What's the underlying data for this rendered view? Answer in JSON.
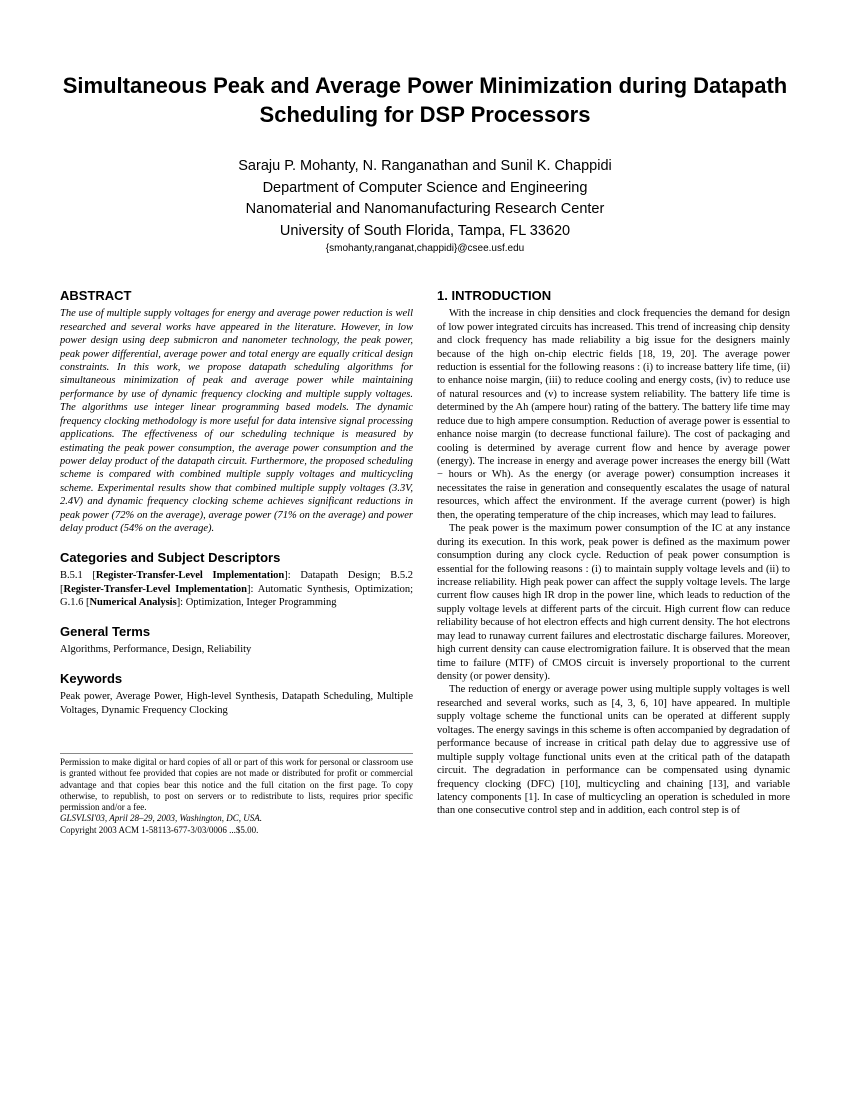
{
  "title": "Simultaneous Peak and Average Power Minimization during Datapath Scheduling for DSP Processors",
  "authors_line1": "Saraju P. Mohanty, N. Ranganathan and Sunil K. Chappidi",
  "authors_line2": "Department of Computer Science and Engineering",
  "authors_line3": "Nanomaterial and Nanomanufacturing Research Center",
  "authors_line4": "University of South Florida, Tampa, FL 33620",
  "email": "{smohanty,ranganat,chappidi}@csee.usf.edu",
  "abstract_head": "ABSTRACT",
  "abstract_body": "The use of multiple supply voltages for energy and average power reduction is well researched and several works have appeared in the literature. However, in low power design using deep submicron and nanometer technology, the peak power, peak power differential, average power and total energy are equally critical design constraints. In this work, we propose datapath scheduling algorithms for simultaneous minimization of peak and average power while maintaining performance by use of dynamic frequency clocking and multiple supply voltages. The algorithms use integer linear programming based models. The dynamic frequency clocking methodology is more useful for data intensive signal processing applications. The effectiveness of our scheduling technique is measured by estimating the peak power consumption, the average power consumption and the power delay product of the datapath circuit. Furthermore, the proposed scheduling scheme is compared with combined multiple supply voltages and multicycling scheme. Experimental results show that combined multiple supply voltages (3.3V, 2.4V) and dynamic frequency clocking scheme achieves significant reductions in peak power (72% on the average), average power (71% on the average) and power delay product (54% on the average).",
  "cat_head": "Categories and Subject Descriptors",
  "cat_body": "B.5.1 [Register-Transfer-Level Implementation]: Datapath Design; B.5.2 [Register-Transfer-Level Implementation]: Automatic Synthesis, Optimization; G.1.6 [Numerical Analysis]: Optimization, Integer Programming",
  "terms_head": "General Terms",
  "terms_body": "Algorithms, Performance, Design, Reliability",
  "keywords_head": "Keywords",
  "keywords_body": "Peak power, Average Power, High-level Synthesis, Datapath Scheduling, Multiple Voltages, Dynamic Frequency Clocking",
  "permission": "Permission to make digital or hard copies of all or part of this work for personal or classroom use is granted without fee provided that copies are not made or distributed for profit or commercial advantage and that copies bear this notice and the full citation on the first page. To copy otherwise, to republish, to post on servers or to redistribute to lists, requires prior specific permission and/or a fee.",
  "conf": "GLSVLSI'03, April 28–29, 2003, Washington, DC, USA.",
  "copyright": "Copyright 2003 ACM 1-58113-677-3/03/0006 ...$5.00.",
  "intro_head": "1.   INTRODUCTION",
  "intro_p1": "With the increase in chip densities and clock frequencies the demand for design of low power integrated circuits has increased. This trend of increasing chip density and clock frequency has made reliability a big issue for the designers mainly because of the high on-chip electric fields [18, 19, 20]. The average power reduction is essential for the following reasons : (i) to increase battery life time, (ii) to enhance noise margin, (iii) to reduce cooling and energy costs, (iv) to reduce use of natural resources and (v) to increase system reliability. The battery life time is determined by the Ah (ampere hour) rating of the battery. The battery life time may reduce due to high ampere consumption. Reduction of average power is essential to enhance noise margin (to decrease functional failure). The cost of packaging and cooling is determined by average current flow and hence by average power (energy). The increase in energy and average power increases the energy bill (Watt − hours or Wh). As the energy (or average power) consumption increases it necessitates the raise in generation and consequently escalates the usage of natural resources, which affect the environment. If the average current (power) is high then, the operating temperature of the chip increases, which may lead to failures.",
  "intro_p2": "The peak power is the maximum power consumption of the IC at any instance during its execution. In this work, peak power is defined as the maximum power consumption during any clock cycle. Reduction of peak power consumption is essential for the following reasons : (i) to maintain supply voltage levels and (ii) to increase reliability. High peak power can affect the supply voltage levels. The large current flow causes high IR drop in the power line, which leads to reduction of the supply voltage levels at different parts of the circuit. High current flow can reduce reliability because of hot electron effects and high current density. The hot electrons may lead to runaway current failures and electrostatic discharge failures. Moreover, high current density can cause electromigration failure. It is observed that the mean time to failure (MTF) of CMOS circuit is inversely proportional to the current density (or power density).",
  "intro_p3": "The reduction of energy or average power using multiple supply voltages is well researched and several works, such as [4, 3, 6, 10] have appeared. In multiple supply voltage scheme the functional units can be operated at different supply voltages. The energy savings in this scheme is often accompanied by degradation of performance because of increase in critical path delay due to aggressive use of multiple supply voltage functional units even at the critical path of the datapath circuit. The degradation in performance can be compensated using dynamic frequency clocking (DFC) [10], multicycling and chaining [13], and variable latency components [1]. In case of multicycling an operation is scheduled in more than one consecutive control step and in addition, each control step is of"
}
